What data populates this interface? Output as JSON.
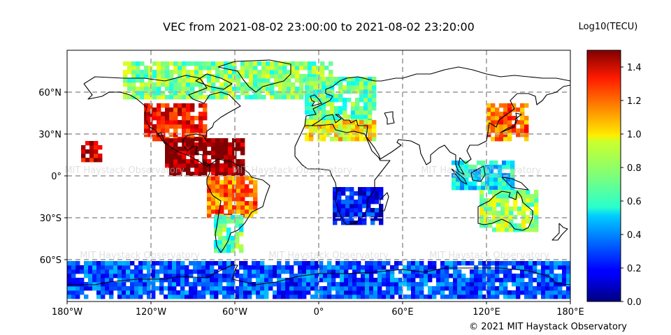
{
  "title": "VEC from 2021-08-02 23:00:00 to 2021-08-02 23:20:00",
  "colorbar": {
    "label": "Log10(TECU)",
    "ticks": [
      "0.0",
      "0.2",
      "0.4",
      "0.6",
      "0.8",
      "1.0",
      "1.2",
      "1.4"
    ],
    "tick_values": [
      0.0,
      0.2,
      0.4,
      0.6,
      0.8,
      1.0,
      1.2,
      1.4
    ],
    "range": [
      0.0,
      1.5
    ],
    "colormap": "jet"
  },
  "axes": {
    "x_ticks": [
      "180°W",
      "120°W",
      "60°W",
      "0°",
      "60°E",
      "120°E",
      "180°E"
    ],
    "x_tick_values": [
      -180,
      -120,
      -60,
      0,
      60,
      120,
      180
    ],
    "y_ticks": [
      "60°N",
      "30°N",
      "0°",
      "30°S",
      "60°S"
    ],
    "y_tick_values": [
      60,
      30,
      0,
      -30,
      -60
    ],
    "lon_range": [
      -180,
      180
    ],
    "lat_range": [
      -90,
      90
    ],
    "grid": true
  },
  "credit": "© 2021 MIT Haystack Observatory",
  "watermark": "MIT Haystack Observatory",
  "chart_data": {
    "type": "heatmap",
    "title": "VEC from 2021-08-02 23:00:00 to 2021-08-02 23:20:00",
    "colorbar_label": "Log10(TECU)",
    "projection": "plate carree",
    "regions": [
      {
        "name": "North America",
        "lon": [
          -125,
          -80
        ],
        "lat": [
          25,
          50
        ],
        "value": 1.3
      },
      {
        "name": "Central America / northern South America",
        "lon": [
          -110,
          -55
        ],
        "lat": [
          0,
          25
        ],
        "value": 1.48
      },
      {
        "name": "South America",
        "lon": [
          -80,
          -45
        ],
        "lat": [
          -30,
          0
        ],
        "value": 1.15
      },
      {
        "name": "Southern South America",
        "lon": [
          -75,
          -55
        ],
        "lat": [
          -55,
          -30
        ],
        "value": 0.7
      },
      {
        "name": "North Pacific (near Hawaii)",
        "lon": [
          -170,
          -155
        ],
        "lat": [
          10,
          25
        ],
        "value": 1.4
      },
      {
        "name": "Canada / Greenland / Arctic",
        "lon": [
          -140,
          10
        ],
        "lat": [
          55,
          80
        ],
        "value": 0.75
      },
      {
        "name": "Europe",
        "lon": [
          -10,
          40
        ],
        "lat": [
          35,
          70
        ],
        "value": 0.7
      },
      {
        "name": "North Africa / Mediterranean",
        "lon": [
          -10,
          40
        ],
        "lat": [
          25,
          40
        ],
        "value": 0.95
      },
      {
        "name": "Southern Africa",
        "lon": [
          10,
          45
        ],
        "lat": [
          -35,
          -10
        ],
        "value": 0.2
      },
      {
        "name": "Japan / East Asia",
        "lon": [
          120,
          150
        ],
        "lat": [
          25,
          50
        ],
        "value": 1.15
      },
      {
        "name": "Southeast Asia / Indonesia",
        "lon": [
          95,
          140
        ],
        "lat": [
          -10,
          10
        ],
        "value": 0.55
      },
      {
        "name": "Australia",
        "lon": [
          115,
          155
        ],
        "lat": [
          -40,
          -10
        ],
        "value": 0.8
      },
      {
        "name": "Antarctic coast",
        "lon": [
          -180,
          180
        ],
        "lat": [
          -88,
          -62
        ],
        "value": 0.3
      }
    ]
  }
}
